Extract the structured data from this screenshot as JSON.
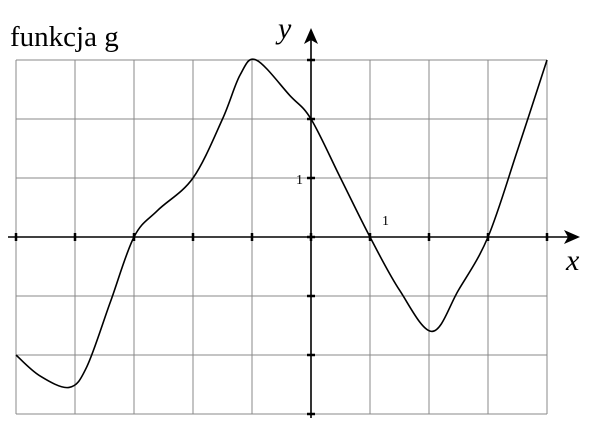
{
  "chart_data": {
    "type": "line",
    "title": "funkcja g",
    "x_label": "x",
    "y_label": "y",
    "x": [
      -5,
      -4.6,
      -4.1,
      -3.8,
      -3.4,
      -3,
      -2.6,
      -2,
      -1.5,
      -1.2,
      -0.93,
      -0.36,
      0,
      0.5,
      1,
      1.5,
      2.05,
      2.5,
      3,
      3.5,
      4
    ],
    "series": [
      {
        "color": "#000000",
        "values": [
          -2.0,
          -2.35,
          -2.55,
          -2.2,
          -1.1,
          0,
          0.45,
          1,
          2.0,
          2.75,
          3,
          2.4,
          2,
          1,
          0,
          -0.9,
          -1.6,
          -0.9,
          0,
          1.47,
          3
        ]
      }
    ],
    "xlim": [
      -5,
      4
    ],
    "ylim": [
      -3,
      3
    ],
    "xticks": [
      -5,
      -4,
      -3,
      -2,
      -1,
      0,
      1,
      2,
      3,
      4
    ],
    "yticks": [
      -3,
      -2,
      -1,
      0,
      1,
      2,
      3
    ],
    "x_labeled_ticks": [
      1
    ],
    "y_labeled_ticks": [
      1
    ],
    "grid": true
  }
}
